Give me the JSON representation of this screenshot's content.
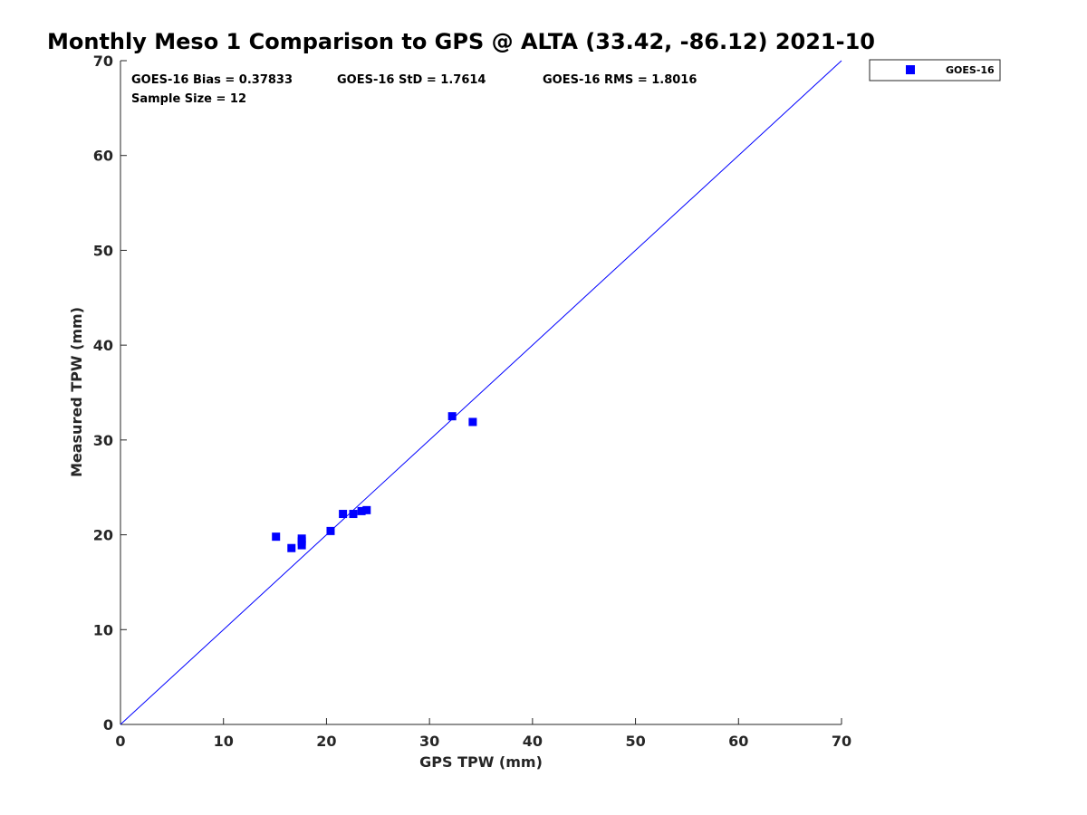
{
  "chart_data": {
    "type": "scatter",
    "title": "Monthly Meso 1 Comparison to GPS @ ALTA (33.42, -86.12) 2021-10",
    "xlabel": "GPS TPW (mm)",
    "ylabel": "Measured TPW (mm)",
    "xlim": [
      0,
      70
    ],
    "ylim": [
      0,
      70
    ],
    "xticks": [
      "0",
      "10",
      "20",
      "30",
      "40",
      "50",
      "60",
      "70"
    ],
    "yticks": [
      "0",
      "10",
      "20",
      "30",
      "40",
      "50",
      "60",
      "70"
    ],
    "grid": false,
    "legend_position": "outside-top-right",
    "reference_line": {
      "from": [
        0,
        0
      ],
      "to": [
        70,
        70
      ],
      "color": "#0000ff"
    },
    "annotations": {
      "bias": "GOES-16 Bias = 0.37833",
      "std": "GOES-16 StD = 1.7614",
      "rms": "GOES-16 RMS = 1.8016",
      "sample_size": "Sample Size = 12"
    },
    "series": [
      {
        "name": "GOES-16",
        "color": "#0000ff",
        "marker": "square",
        "x": [
          15.1,
          16.6,
          17.6,
          17.6,
          17.6,
          20.4,
          21.6,
          22.6,
          23.4,
          23.9,
          32.2,
          34.2
        ],
        "y": [
          19.8,
          18.6,
          18.9,
          19.3,
          19.6,
          20.4,
          22.2,
          22.2,
          22.5,
          22.6,
          32.5,
          31.9
        ]
      }
    ]
  }
}
